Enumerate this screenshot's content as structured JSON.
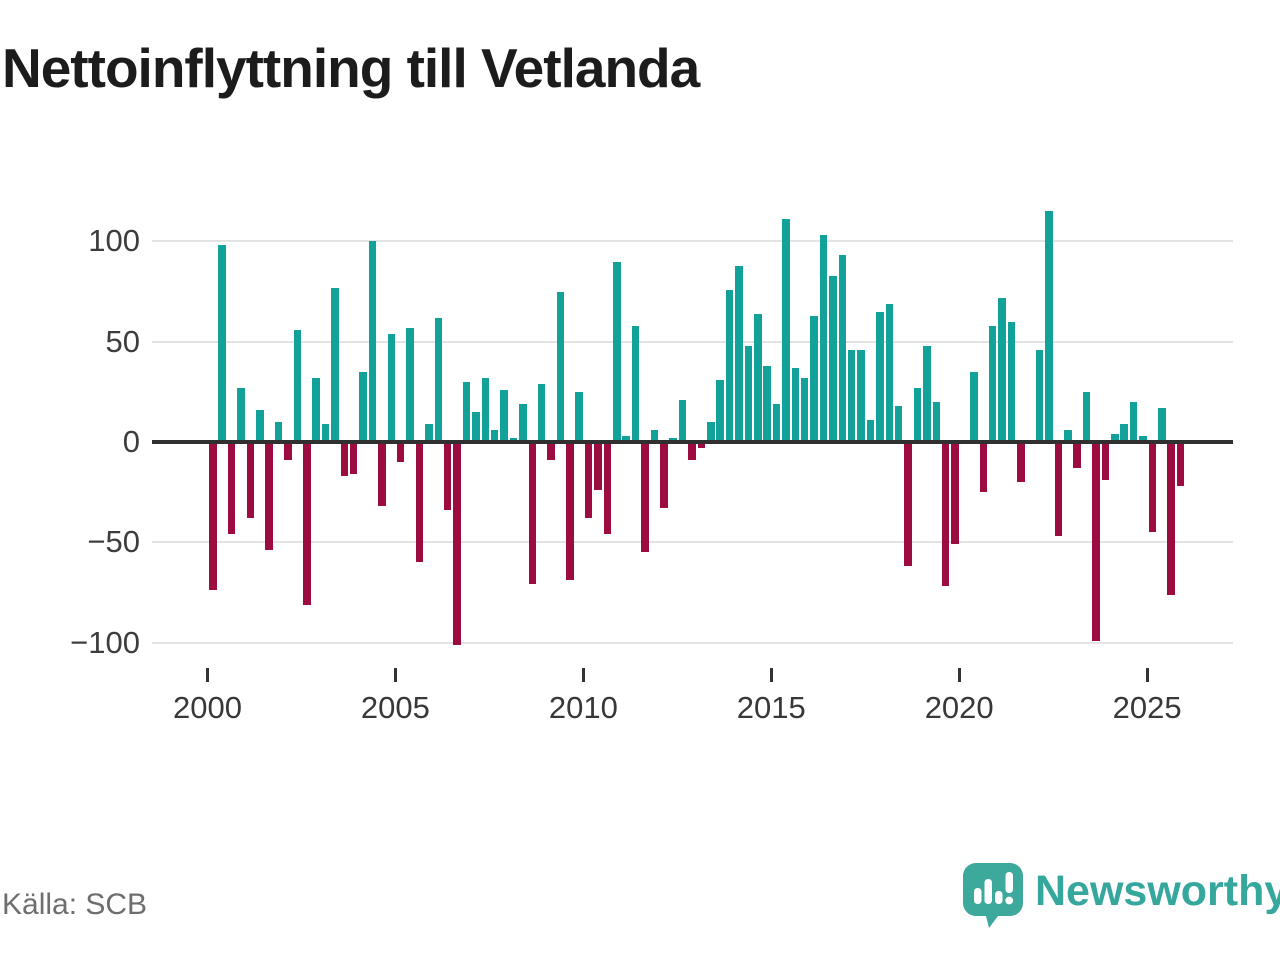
{
  "title": "Nettoinflyttning till Vetlanda",
  "source_note": "Källa: SCB",
  "brand": {
    "name": "Newsworthy",
    "icon": "newsworthy-speech-bubble-bar-chart-icon"
  },
  "colors": {
    "positive_bar": "#12a29a",
    "negative_bar": "#9d0c41",
    "brand_teal": "#3da89c",
    "grid": "#e3e3e3",
    "zero_line": "#303030",
    "axis_text": "#3d3d3d",
    "title_text": "#1c1c1c",
    "source_text": "#6e6e6e"
  },
  "chart_data": {
    "type": "bar",
    "title": "Nettoinflyttning till Vetlanda",
    "xlabel": "",
    "ylabel": "",
    "frequency": "quarterly",
    "x_start": "2000Q1",
    "x_end": "2025Q4",
    "ylim": [
      -110,
      122
    ],
    "grid": "horizontal",
    "yticks": [
      100,
      50,
      0,
      -50,
      -100
    ],
    "ytick_labels": [
      "100",
      "50",
      "0",
      "−50",
      "−100"
    ],
    "xticks": [
      2000,
      2005,
      2010,
      2015,
      2020,
      2025
    ],
    "xtick_labels": [
      "2000",
      "2005",
      "2010",
      "2015",
      "2020",
      "2025"
    ],
    "series": [
      {
        "name": "Nettoinflyttning per kvartal",
        "values": [
          -74,
          98,
          -46,
          27,
          -38,
          16,
          -54,
          10,
          -9,
          56,
          -81,
          32,
          9,
          77,
          -17,
          -16,
          35,
          100,
          -32,
          54,
          -10,
          57,
          -60,
          9,
          62,
          -34,
          -101,
          30,
          15,
          32,
          6,
          26,
          2,
          19,
          -71,
          29,
          -9,
          75,
          -69,
          25,
          -38,
          -24,
          -46,
          90,
          3,
          58,
          -55,
          6,
          -33,
          2,
          21,
          -9,
          -3,
          10,
          31,
          76,
          88,
          48,
          64,
          38,
          19,
          111,
          37,
          32,
          63,
          103,
          83,
          93,
          46,
          46,
          11,
          65,
          69,
          18,
          -62,
          27,
          48,
          20,
          -72,
          -51,
          0,
          35,
          -25,
          58,
          72,
          60,
          -20,
          0,
          46,
          115,
          -47,
          6,
          -13,
          25,
          -99,
          -19,
          4,
          9,
          20,
          3,
          -45,
          17,
          -76,
          -22
        ]
      }
    ]
  }
}
